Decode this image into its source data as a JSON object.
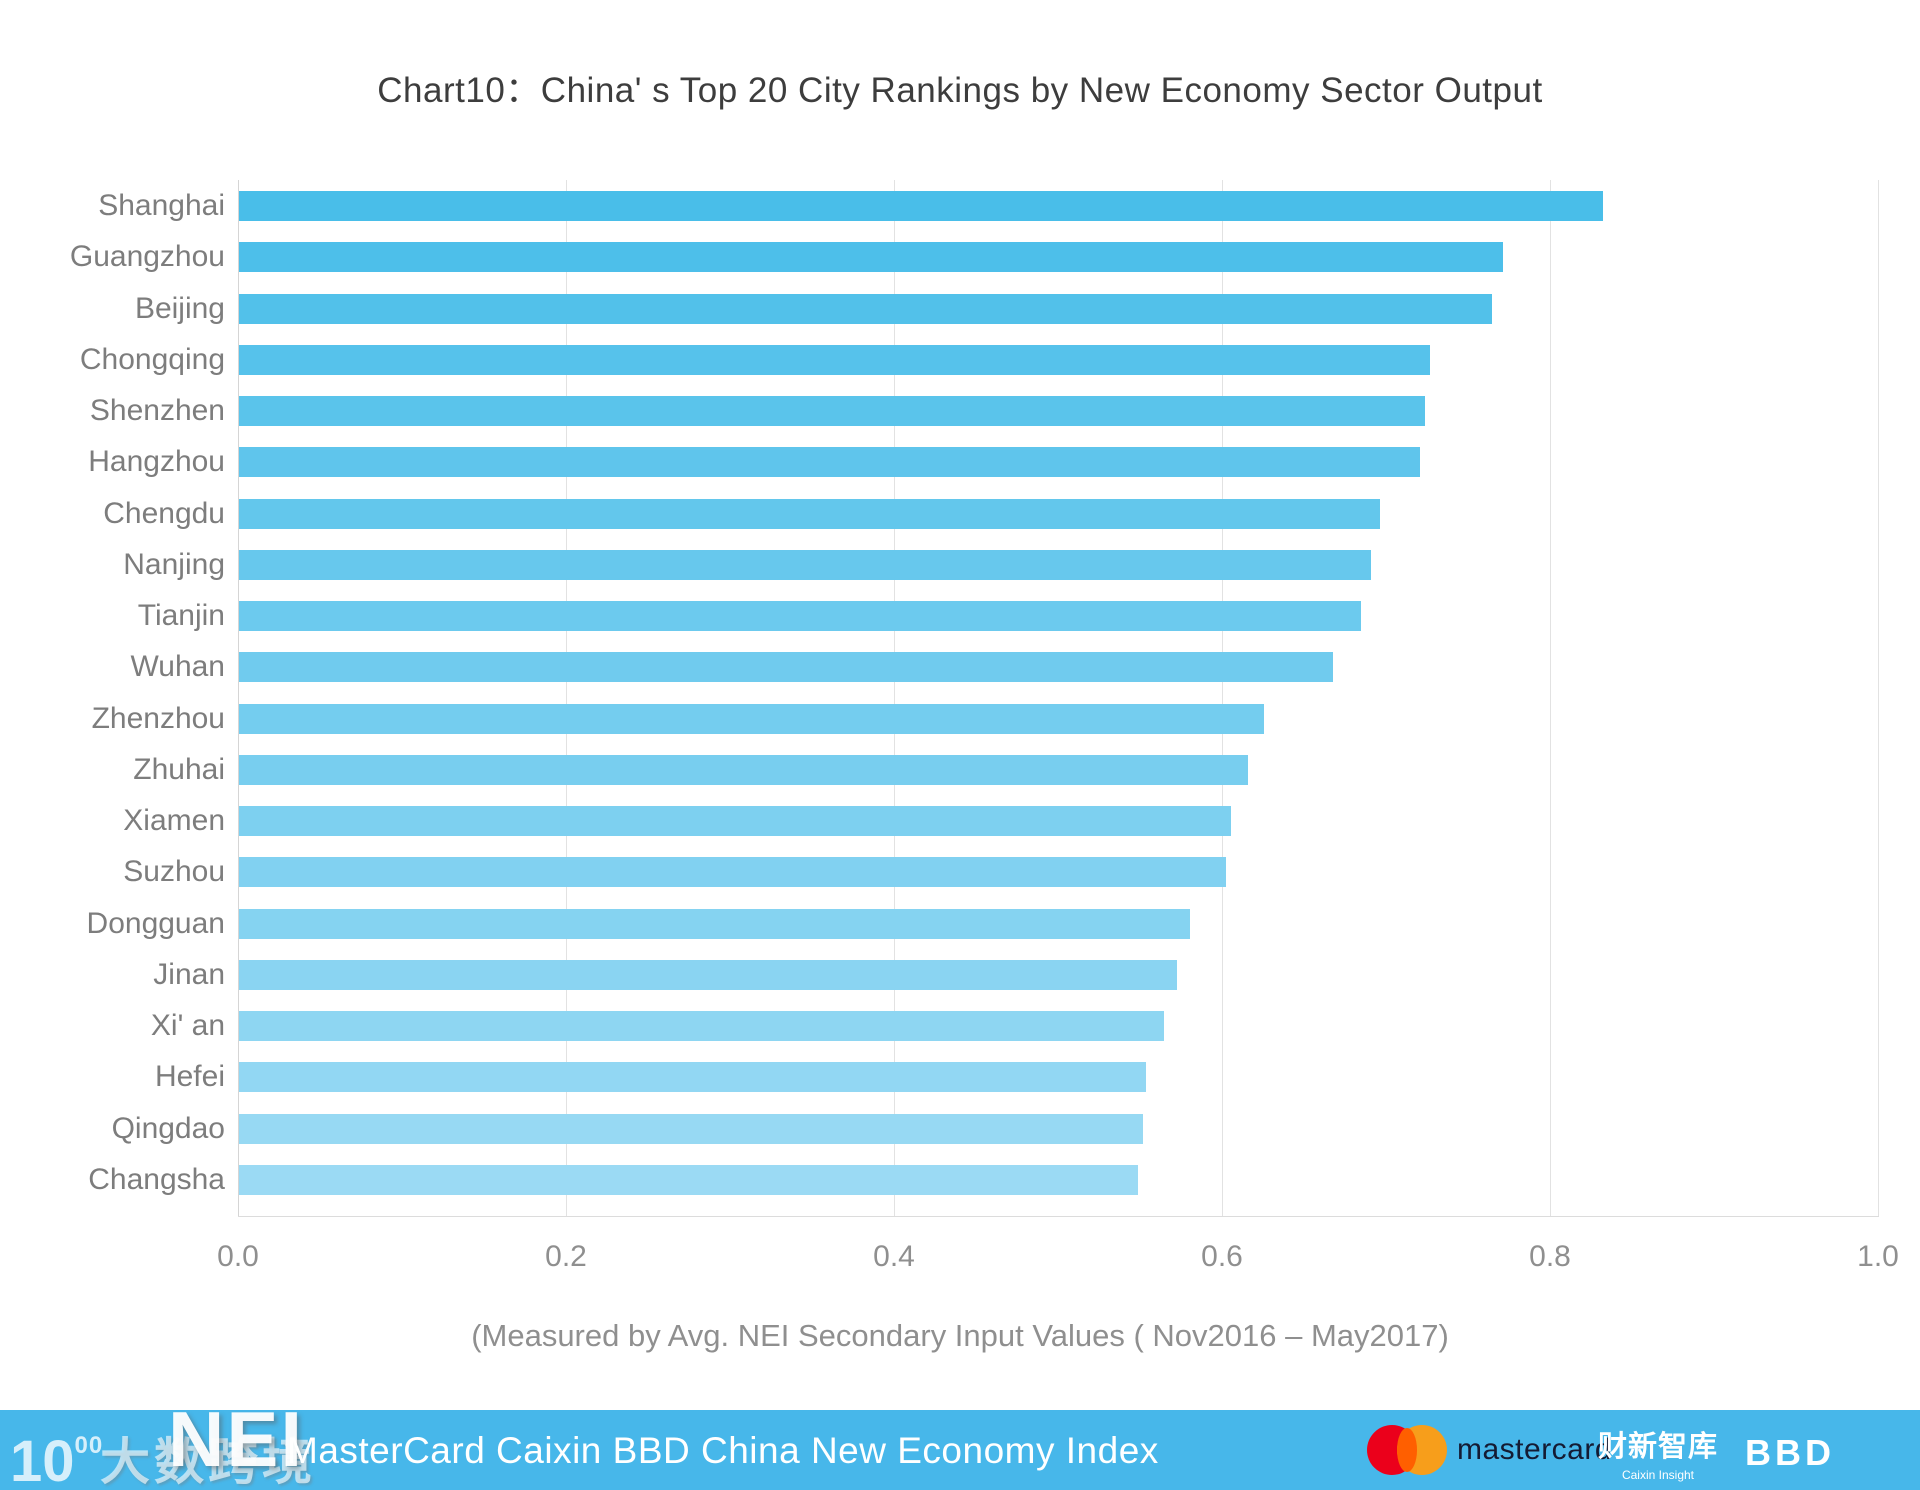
{
  "title": "Chart10：China' s Top 20 City Rankings by New Economy Sector Output",
  "subtitle": "(Measured by Avg. NEI Secondary Input Values ( Nov2016 – May2017)",
  "chart_data": {
    "type": "bar",
    "orientation": "horizontal",
    "title": "Chart10：China' s Top 20 City Rankings by New Economy Sector Output",
    "xlabel": "(Measured by Avg. NEI Secondary Input Values ( Nov2016 – May2017)",
    "categories": [
      "Shanghai",
      "Guangzhou",
      "Beijing",
      "Chongqing",
      "Shenzhen",
      "Hangzhou",
      "Chengdu",
      "Nanjing",
      "Tianjin",
      "Wuhan",
      "Zhenzhou",
      "Zhuhai",
      "Xiamen",
      "Suzhou",
      "Dongguan",
      "Jinan",
      "Xi' an",
      "Hefei",
      "Qingdao",
      "Changsha"
    ],
    "values": [
      0.832,
      0.771,
      0.764,
      0.726,
      0.723,
      0.72,
      0.696,
      0.69,
      0.684,
      0.667,
      0.625,
      0.615,
      0.605,
      0.602,
      0.58,
      0.572,
      0.564,
      0.553,
      0.551,
      0.548
    ],
    "xlim": [
      0.0,
      1.0
    ],
    "x_ticks": [
      "0.0",
      "0.2",
      "0.4",
      "0.6",
      "0.8",
      "1.0"
    ],
    "grid": true,
    "legend": "none",
    "bar_color_start": "#49BEE9",
    "bar_color_end": "#9BDAF4"
  },
  "footer": {
    "bar_color": "#47B7EA",
    "brand_text": "MasterCard Caixin BBD China New Economy Index",
    "logo_100_main": "10",
    "logo_100_sup": "00",
    "logo_dashu": "大数跨境",
    "logo_nei": "NEI",
    "mastercard_label": "mastercard",
    "mastercard_red": "#EB001B",
    "mastercard_orange": "#F79E1B",
    "mastercard_overlap": "#FF5F00",
    "caixin_cn": "财新智库",
    "caixin_en": "Caixin Insight",
    "bbd_label": "BBD"
  }
}
